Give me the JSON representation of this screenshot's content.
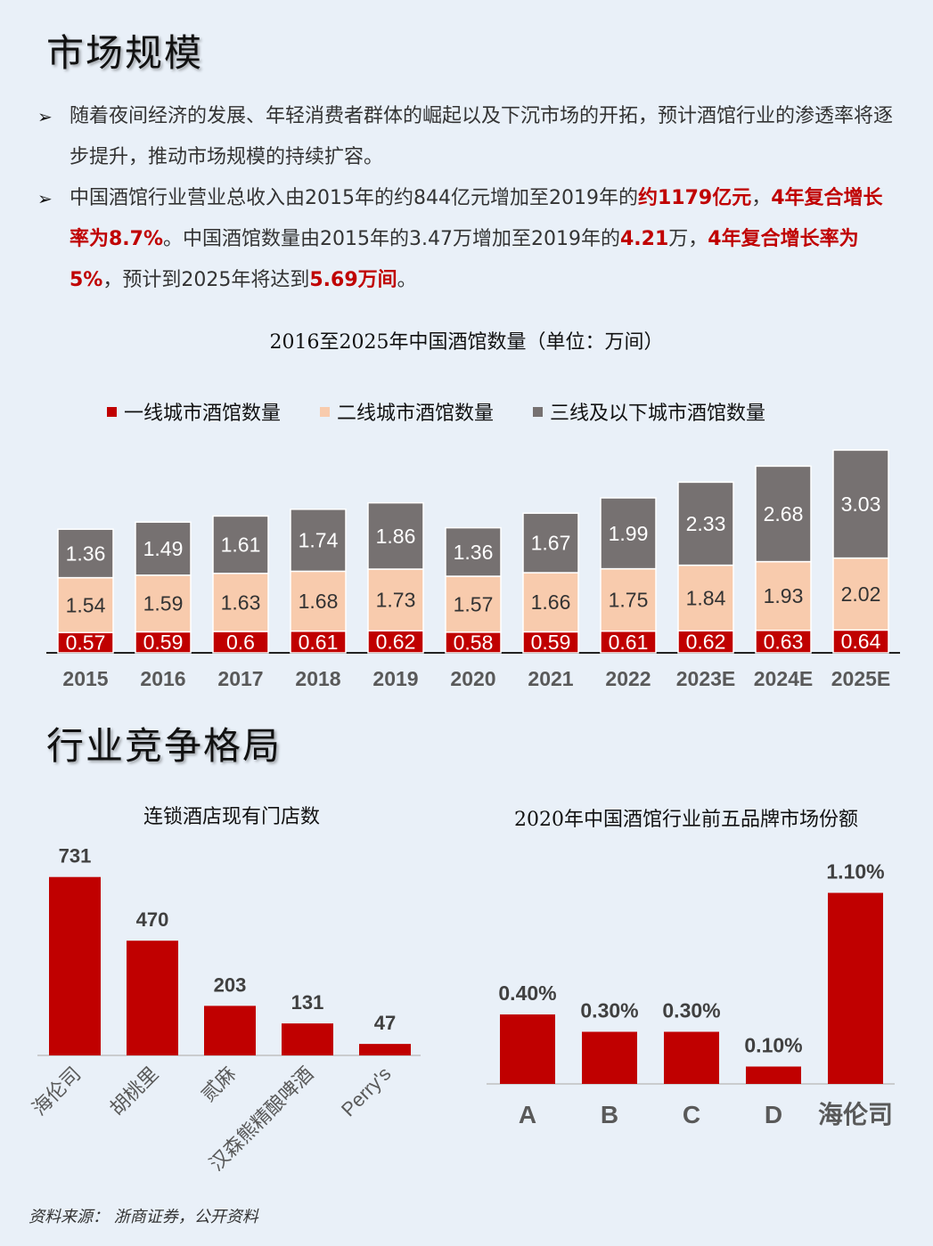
{
  "section1_title": "市场规模",
  "bullet1": "随着夜间经济的发展、年轻消费者群体的崛起以及下沉市场的开拓，预计酒馆行业的渗透率将逐步提升，推动市场规模的持续扩容。",
  "bullet2": {
    "a": "中国酒馆行业营业总收入由2015年的约844亿元增加至2019年的",
    "b": "约1179亿元",
    "c": "，",
    "d": "4年复合增长率为8.7%",
    "e": "。中国酒馆数量由2015年的3.47万增加至2019年的",
    "f": "4.21",
    "g": "万，",
    "h": "4年复合增长率为5%",
    "i": "，预计到2025年将达到",
    "j": "5.69万间",
    "k": "。"
  },
  "chart1": {
    "title": "2016至2025年中国酒馆数量（单位：万间）",
    "legend": [
      "一线城市酒馆数量",
      "二线城市酒馆数量",
      "三线及以下城市酒馆数量"
    ]
  },
  "section2_title": "行业竞争格局",
  "chart2_title": "连锁酒店现有门店数",
  "chart3_title": "2020年中国酒馆行业前五品牌市场份额",
  "source": "资料来源：  浙商证券，公开资料",
  "chart_data": [
    {
      "type": "bar",
      "stacked": true,
      "title": "2016至2025年中国酒馆数量（单位：万间）",
      "categories": [
        "2015",
        "2016",
        "2017",
        "2018",
        "2019",
        "2020",
        "2021",
        "2022",
        "2023E",
        "2024E",
        "2025E"
      ],
      "series": [
        {
          "name": "一线城市酒馆数量",
          "color": "#c00000",
          "values": [
            0.57,
            0.59,
            0.6,
            0.61,
            0.62,
            0.58,
            0.59,
            0.61,
            0.62,
            0.63,
            0.64
          ]
        },
        {
          "name": "二线城市酒馆数量",
          "color": "#f8cbad",
          "values": [
            1.54,
            1.59,
            1.63,
            1.68,
            1.73,
            1.57,
            1.66,
            1.75,
            1.84,
            1.93,
            2.02
          ]
        },
        {
          "name": "三线及以下城市酒馆数量",
          "color": "#767171",
          "values": [
            1.36,
            1.49,
            1.61,
            1.74,
            1.86,
            1.36,
            1.67,
            1.99,
            2.33,
            2.68,
            3.03
          ]
        }
      ],
      "legend_position": "top",
      "grid": false
    },
    {
      "type": "bar",
      "title": "连锁酒店现有门店数",
      "categories": [
        "海伦司",
        "胡桃里",
        "贰麻",
        "汉森熊精酿啤酒",
        "Perry's"
      ],
      "values": [
        731,
        470,
        203,
        131,
        47
      ],
      "color": "#c00000",
      "grid": false
    },
    {
      "type": "bar",
      "title": "2020年中国酒馆行业前五品牌市场份额",
      "categories": [
        "A",
        "B",
        "C",
        "D",
        "海伦司"
      ],
      "values": [
        0.4,
        0.3,
        0.3,
        0.1,
        1.1
      ],
      "value_labels": [
        "0.40%",
        "0.30%",
        "0.30%",
        "0.10%",
        "1.10%"
      ],
      "unit": "%",
      "color": "#c00000",
      "grid": false
    }
  ]
}
